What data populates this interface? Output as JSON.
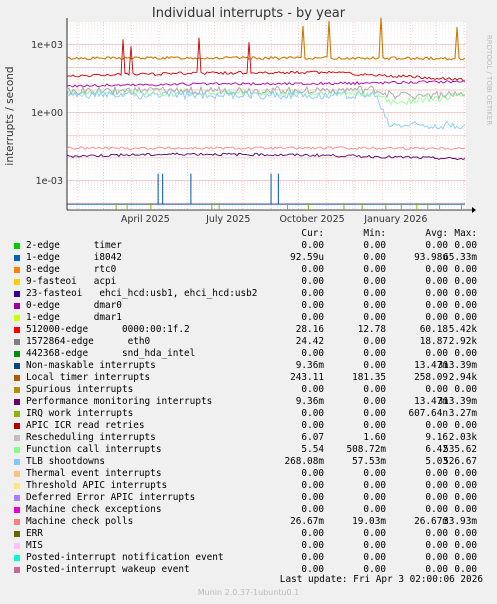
{
  "chart_data": {
    "type": "line",
    "title": "Individual interrupts - by year",
    "ylabel": "interrupts / second",
    "yscale": "log",
    "ylim": [
      5e-05,
      10000
    ],
    "y_ticks": [
      {
        "value": 1000,
        "label": "1e+03"
      },
      {
        "value": 1,
        "label": "1e+00"
      },
      {
        "value": 0.001,
        "label": "1e-03"
      }
    ],
    "xlim": [
      "2025-01-20",
      "2026-04-03"
    ],
    "x_ticks": [
      {
        "date": "2025-04-01",
        "label": "April 2025"
      },
      {
        "date": "2025-07-01",
        "label": "July 2025"
      },
      {
        "date": "2025-10-01",
        "label": "October 2025"
      },
      {
        "date": "2026-01-01",
        "label": "January 2026"
      }
    ],
    "grid": true,
    "side_label": "RRDTOOL / TOBI OETIKER",
    "series": [
      {
        "name": "Local timer interrupts",
        "color": "#cc7a00",
        "values": [
          [
            "2025-01-20",
            250
          ],
          [
            "2025-06-01",
            260
          ],
          [
            "2025-11-01",
            255
          ],
          [
            "2026-04-03",
            243
          ]
        ]
      },
      {
        "name": "512000-edge      0000:00:1f.2",
        "color": "#cc0000",
        "values": [
          [
            "2025-01-20",
            40
          ],
          [
            "2025-06-01",
            55
          ],
          [
            "2025-11-01",
            60
          ],
          [
            "2026-04-03",
            28
          ]
        ]
      },
      {
        "name": "1572864-edge      eth0",
        "color": "#aa00aa",
        "values": [
          [
            "2025-01-20",
            15
          ],
          [
            "2025-06-01",
            18
          ],
          [
            "2025-11-01",
            19
          ],
          [
            "2026-04-03",
            24
          ]
        ]
      },
      {
        "name": "Function call interrupts",
        "color": "#99ff99",
        "values": [
          [
            "2025-01-20",
            8
          ],
          [
            "2025-12-25",
            7
          ],
          [
            "2026-01-10",
            3
          ],
          [
            "2026-04-03",
            5.5
          ]
        ]
      },
      {
        "name": "Rescheduling interrupts",
        "color": "#aaaaaa",
        "values": [
          [
            "2025-01-20",
            9
          ],
          [
            "2025-12-25",
            10
          ],
          [
            "2026-01-10",
            6
          ],
          [
            "2026-04-03",
            6
          ]
        ]
      },
      {
        "name": "TLB shootdowns",
        "color": "#88ccff",
        "values": [
          [
            "2025-01-20",
            6
          ],
          [
            "2025-12-25",
            6
          ],
          [
            "2026-01-08",
            0.3
          ],
          [
            "2026-04-03",
            0.27
          ]
        ]
      },
      {
        "name": "Machine check polls",
        "color": "#ff8888",
        "values": [
          [
            "2025-01-20",
            0.027
          ],
          [
            "2026-04-03",
            0.027
          ]
        ]
      },
      {
        "name": "Performance monitoring interrupts",
        "color": "#550066",
        "values": [
          [
            "2025-01-20",
            0.012
          ],
          [
            "2025-06-01",
            0.015
          ],
          [
            "2025-11-01",
            0.013
          ],
          [
            "2026-04-03",
            0.009
          ]
        ]
      },
      {
        "name": "1-edge      i8042",
        "color": "#0055aa",
        "values": [
          [
            "2025-01-20",
            9e-05
          ],
          [
            "2026-04-03",
            9e-05
          ]
        ]
      }
    ]
  },
  "legend": {
    "headers": {
      "cur": "Cur:",
      "min": "Min:",
      "avg": "Avg:",
      "max": "Max:"
    },
    "rows": [
      {
        "color": "#00cc00",
        "label": "2-edge      timer",
        "cur": "0.00",
        "min": "0.00",
        "avg": "0.00",
        "max": "0.00"
      },
      {
        "color": "#0066b3",
        "label": "1-edge      i8042",
        "cur": "92.59u",
        "min": "0.00",
        "avg": "93.98u",
        "max": "65.33m"
      },
      {
        "color": "#ff8000",
        "label": "8-edge      rtc0",
        "cur": "0.00",
        "min": "0.00",
        "avg": "0.00",
        "max": "0.00"
      },
      {
        "color": "#ffcc00",
        "label": "9-fasteoi   acpi",
        "cur": "0.00",
        "min": "0.00",
        "avg": "0.00",
        "max": "0.00"
      },
      {
        "color": "#330099",
        "label": "23-fasteoi   ehci_hcd:usb1, ehci_hcd:usb2",
        "cur": "0.00",
        "min": "0.00",
        "avg": "0.00",
        "max": "0.00"
      },
      {
        "color": "#990099",
        "label": "0-edge      dmar0",
        "cur": "0.00",
        "min": "0.00",
        "avg": "0.00",
        "max": "0.00"
      },
      {
        "color": "#ccff00",
        "label": "1-edge      dmar1",
        "cur": "0.00",
        "min": "0.00",
        "avg": "0.00",
        "max": "0.00"
      },
      {
        "color": "#ff0000",
        "label": "512000-edge      0000:00:1f.2",
        "cur": "28.16",
        "min": "12.78",
        "avg": "60.18",
        "max": "5.42k"
      },
      {
        "color": "#808080",
        "label": "1572864-edge      eth0",
        "cur": "24.42",
        "min": "0.00",
        "avg": "18.87",
        "max": "2.92k"
      },
      {
        "color": "#008f00",
        "label": "442368-edge      snd_hda_intel",
        "cur": "0.00",
        "min": "0.00",
        "avg": "0.00",
        "max": "0.00"
      },
      {
        "color": "#00487d",
        "label": "Non-maskable interrupts",
        "cur": "9.36m",
        "min": "0.00",
        "avg": "13.47m",
        "max": "313.39m"
      },
      {
        "color": "#b35a00",
        "label": "Local timer interrupts",
        "cur": "243.11",
        "min": "181.35",
        "avg": "258.09",
        "max": "2.94k"
      },
      {
        "color": "#b38f00",
        "label": "Spurious interrupts",
        "cur": "0.00",
        "min": "0.00",
        "avg": "0.00",
        "max": "0.00"
      },
      {
        "color": "#6b006b",
        "label": "Performance monitoring interrupts",
        "cur": "9.36m",
        "min": "0.00",
        "avg": "13.47m",
        "max": "313.39m"
      },
      {
        "color": "#8fb300",
        "label": "IRQ work interrupts",
        "cur": "0.00",
        "min": "0.00",
        "avg": "607.64n",
        "max": "3.27m"
      },
      {
        "color": "#b30000",
        "label": "APIC ICR read retries",
        "cur": "0.00",
        "min": "0.00",
        "avg": "0.00",
        "max": "0.00"
      },
      {
        "color": "#bebebe",
        "label": "Rescheduling interrupts",
        "cur": "6.07",
        "min": "1.60",
        "avg": "9.16",
        "max": "2.03k"
      },
      {
        "color": "#80ff80",
        "label": "Function call interrupts",
        "cur": "5.54",
        "min": "508.72m",
        "avg": "6.42",
        "max": "535.62"
      },
      {
        "color": "#80c9ff",
        "label": "TLB shootdowns",
        "cur": "268.08m",
        "min": "57.53m",
        "avg": "5.03",
        "max": "526.67"
      },
      {
        "color": "#ffc080",
        "label": "Thermal event interrupts",
        "cur": "0.00",
        "min": "0.00",
        "avg": "0.00",
        "max": "0.00"
      },
      {
        "color": "#ffe680",
        "label": "Threshold APIC interrupts",
        "cur": "0.00",
        "min": "0.00",
        "avg": "0.00",
        "max": "0.00"
      },
      {
        "color": "#aa80ff",
        "label": "Deferred Error APIC interrupts",
        "cur": "0.00",
        "min": "0.00",
        "avg": "0.00",
        "max": "0.00"
      },
      {
        "color": "#ee00cc",
        "label": "Machine check exceptions",
        "cur": "0.00",
        "min": "0.00",
        "avg": "0.00",
        "max": "0.00"
      },
      {
        "color": "#ff8080",
        "label": "Machine check polls",
        "cur": "26.67m",
        "min": "19.03m",
        "avg": "26.67m",
        "max": "33.93m"
      },
      {
        "color": "#666600",
        "label": "ERR",
        "cur": "0.00",
        "min": "0.00",
        "avg": "0.00",
        "max": "0.00"
      },
      {
        "color": "#ffbfff",
        "label": "MIS",
        "cur": "0.00",
        "min": "0.00",
        "avg": "0.00",
        "max": "0.00"
      },
      {
        "color": "#00ffcc",
        "label": "Posted-interrupt notification event",
        "cur": "0.00",
        "min": "0.00",
        "avg": "0.00",
        "max": "0.00"
      },
      {
        "color": "#cc6699",
        "label": "Posted-interrupt wakeup event",
        "cur": "0.00",
        "min": "0.00",
        "avg": "0.00",
        "max": "0.00"
      }
    ]
  },
  "last_update": "Last update: Fri Apr  3 02:00:06 2026",
  "footer": "Munin 2.0.37-1ubuntu0.1"
}
